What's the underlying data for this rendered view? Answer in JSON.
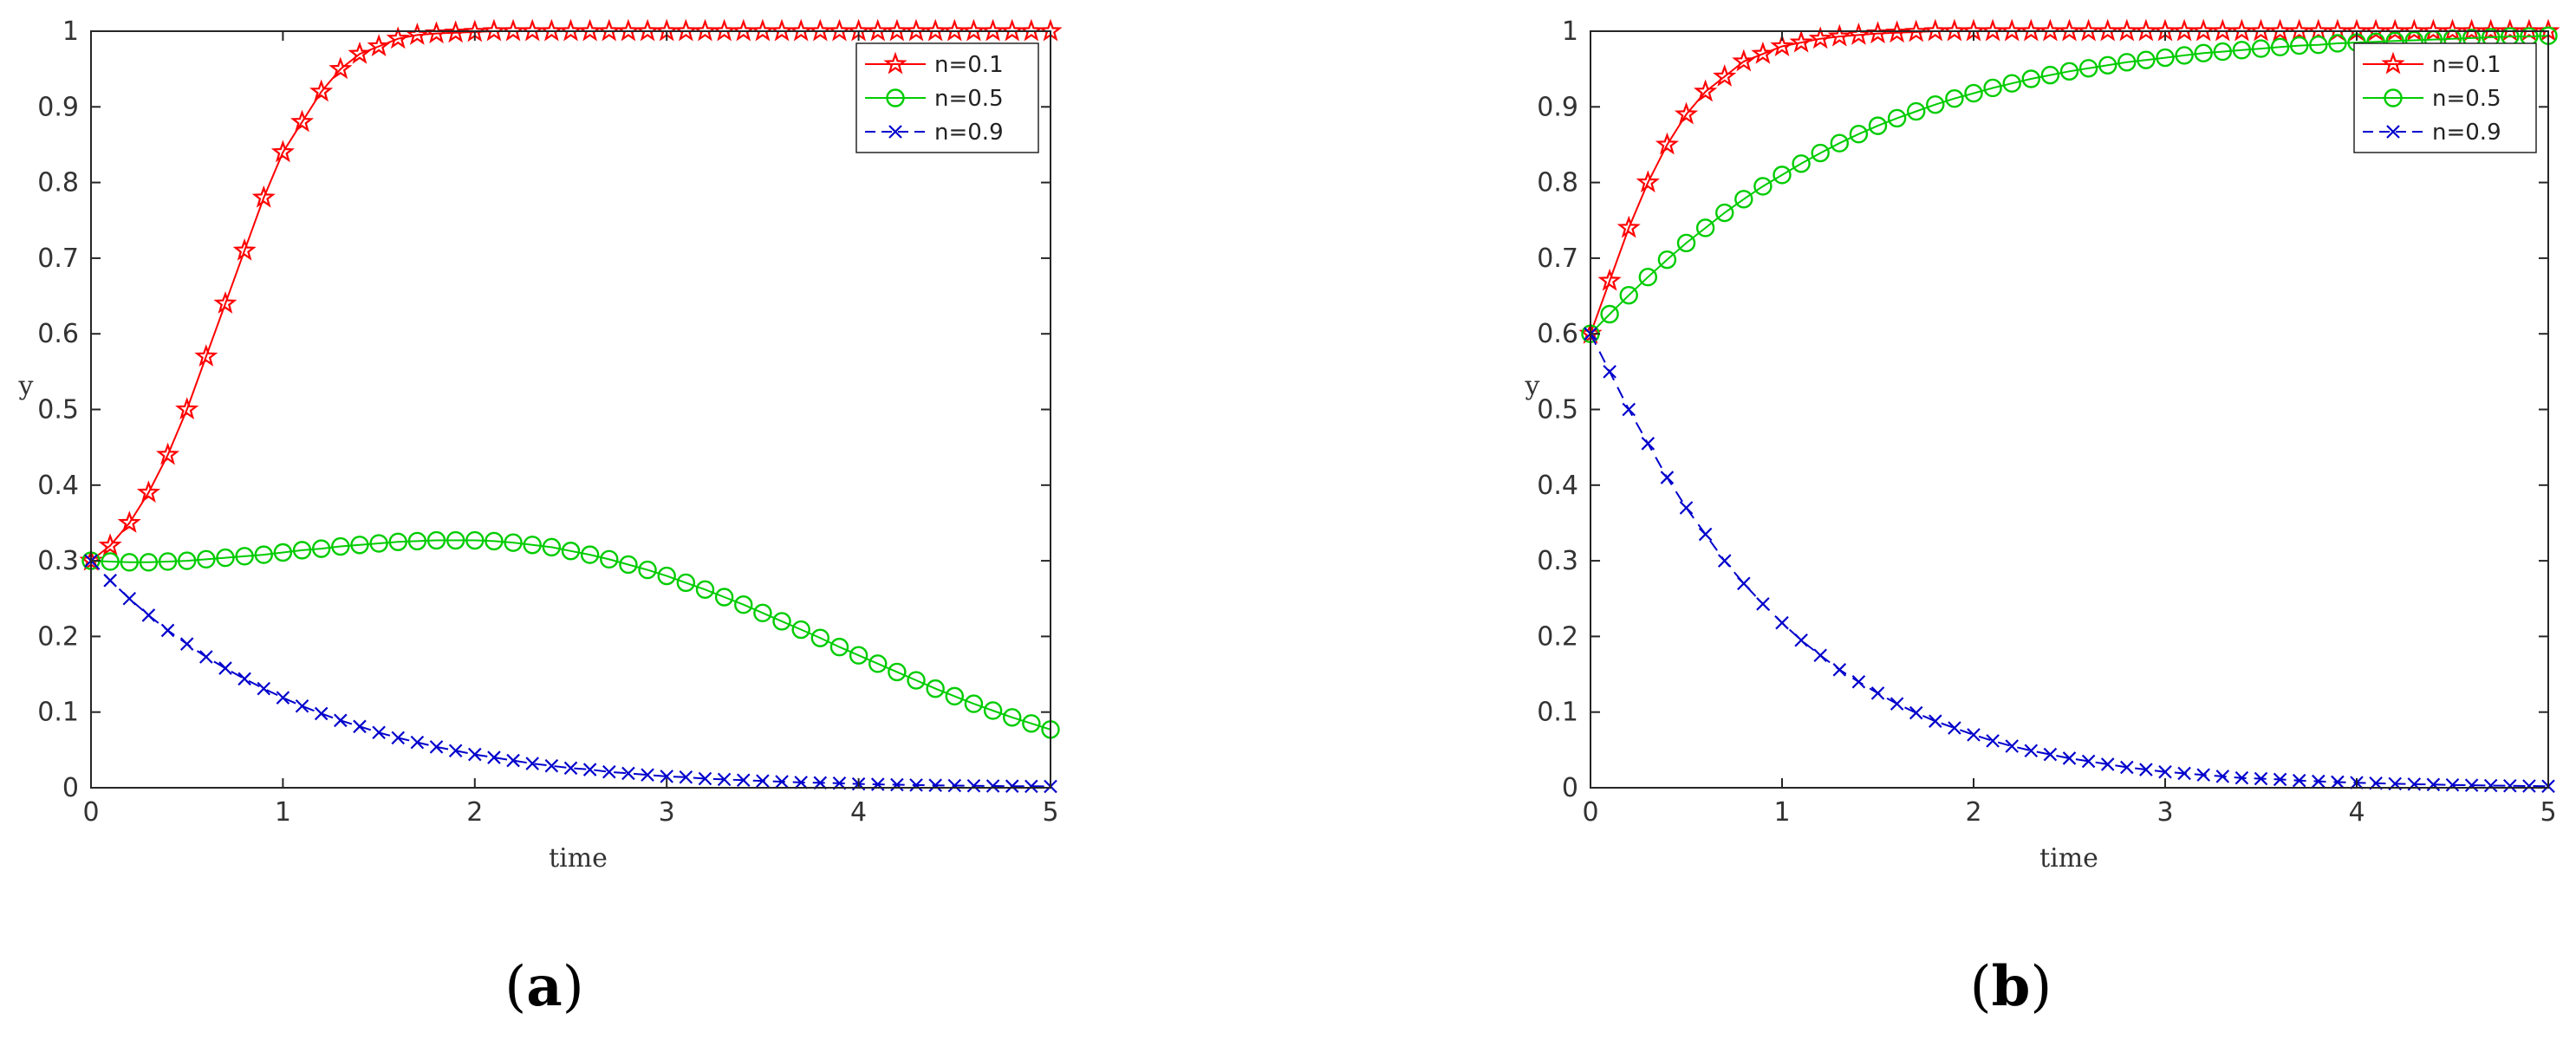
{
  "figure": {
    "panel_labels": [
      {
        "open": "(",
        "letter": "a",
        "close": ")"
      },
      {
        "open": "(",
        "letter": "b",
        "close": ")"
      }
    ]
  },
  "chart_data": [
    {
      "type": "line",
      "title": "",
      "xlabel": "time",
      "ylabel": "y",
      "xlim": [
        0,
        5
      ],
      "ylim": [
        0,
        1
      ],
      "xticks": [
        "0",
        "1",
        "2",
        "3",
        "4",
        "5"
      ],
      "yticks": [
        "0",
        "0.1",
        "0.2",
        "0.3",
        "0.4",
        "0.5",
        "0.6",
        "0.7",
        "0.8",
        "0.9",
        "1"
      ],
      "grid": false,
      "legend_position": "top-right",
      "x": [
        0.0,
        0.1,
        0.2,
        0.3,
        0.4,
        0.5,
        0.6,
        0.7,
        0.8,
        0.9,
        1.0,
        1.1,
        1.2,
        1.3,
        1.4,
        1.5,
        1.6,
        1.7,
        1.8,
        1.9,
        2.0,
        2.1,
        2.2,
        2.3,
        2.4,
        2.5,
        2.6,
        2.7,
        2.8,
        2.9,
        3.0,
        3.1,
        3.2,
        3.3,
        3.4,
        3.5,
        3.6,
        3.7,
        3.8,
        3.9,
        4.0,
        4.1,
        4.2,
        4.3,
        4.4,
        4.5,
        4.6,
        4.7,
        4.8,
        4.9,
        5.0
      ],
      "series": [
        {
          "name": "n=0.1",
          "color": "#ff0000",
          "marker": "star",
          "dash": "solid",
          "values": [
            0.3,
            0.32,
            0.35,
            0.39,
            0.44,
            0.5,
            0.57,
            0.64,
            0.71,
            0.78,
            0.84,
            0.88,
            0.92,
            0.95,
            0.97,
            0.98,
            0.99,
            0.995,
            0.997,
            0.998,
            0.999,
            1,
            1,
            1,
            1,
            1,
            1,
            1,
            1,
            1,
            1,
            1,
            1,
            1,
            1,
            1,
            1,
            1,
            1,
            1,
            1,
            1,
            1,
            1,
            1,
            1,
            1,
            1,
            1,
            1,
            1
          ]
        },
        {
          "name": "n=0.5",
          "color": "#00cc00",
          "marker": "circle",
          "dash": "solid",
          "values": [
            0.3,
            0.299,
            0.298,
            0.298,
            0.299,
            0.3,
            0.302,
            0.304,
            0.306,
            0.308,
            0.311,
            0.314,
            0.316,
            0.319,
            0.321,
            0.323,
            0.325,
            0.326,
            0.327,
            0.327,
            0.327,
            0.326,
            0.324,
            0.321,
            0.318,
            0.313,
            0.308,
            0.302,
            0.295,
            0.288,
            0.28,
            0.271,
            0.262,
            0.252,
            0.242,
            0.231,
            0.22,
            0.209,
            0.198,
            0.186,
            0.175,
            0.164,
            0.153,
            0.142,
            0.131,
            0.121,
            0.111,
            0.102,
            0.093,
            0.085,
            0.077
          ]
        },
        {
          "name": "n=0.9",
          "color": "#0000cc",
          "marker": "x",
          "dash": "dashed",
          "values": [
            0.3,
            0.274,
            0.25,
            0.228,
            0.208,
            0.19,
            0.173,
            0.158,
            0.144,
            0.131,
            0.119,
            0.108,
            0.098,
            0.089,
            0.081,
            0.073,
            0.066,
            0.06,
            0.054,
            0.049,
            0.044,
            0.04,
            0.036,
            0.032,
            0.029,
            0.026,
            0.024,
            0.021,
            0.019,
            0.017,
            0.015,
            0.014,
            0.012,
            0.011,
            0.01,
            0.009,
            0.008,
            0.007,
            0.0065,
            0.006,
            0.005,
            0.0045,
            0.004,
            0.0036,
            0.0032,
            0.0029,
            0.0026,
            0.0023,
            0.0021,
            0.0019,
            0.0017
          ]
        }
      ]
    },
    {
      "type": "line",
      "title": "",
      "xlabel": "time",
      "ylabel": "y",
      "xlim": [
        0,
        5
      ],
      "ylim": [
        0,
        1
      ],
      "xticks": [
        "0",
        "1",
        "2",
        "3",
        "4",
        "5"
      ],
      "yticks": [
        "0",
        "0.1",
        "0.2",
        "0.3",
        "0.4",
        "0.5",
        "0.6",
        "0.7",
        "0.8",
        "0.9",
        "1"
      ],
      "grid": false,
      "legend_position": "top-right",
      "x": [
        0.0,
        0.1,
        0.2,
        0.3,
        0.4,
        0.5,
        0.6,
        0.7,
        0.8,
        0.9,
        1.0,
        1.1,
        1.2,
        1.3,
        1.4,
        1.5,
        1.6,
        1.7,
        1.8,
        1.9,
        2.0,
        2.1,
        2.2,
        2.3,
        2.4,
        2.5,
        2.6,
        2.7,
        2.8,
        2.9,
        3.0,
        3.1,
        3.2,
        3.3,
        3.4,
        3.5,
        3.6,
        3.7,
        3.8,
        3.9,
        4.0,
        4.1,
        4.2,
        4.3,
        4.4,
        4.5,
        4.6,
        4.7,
        4.8,
        4.9,
        5.0
      ],
      "series": [
        {
          "name": "n=0.1",
          "color": "#ff0000",
          "marker": "star",
          "dash": "solid",
          "values": [
            0.6,
            0.67,
            0.74,
            0.8,
            0.85,
            0.89,
            0.92,
            0.94,
            0.96,
            0.97,
            0.98,
            0.985,
            0.99,
            0.993,
            0.995,
            0.997,
            0.998,
            0.999,
            1,
            1,
            1,
            1,
            1,
            1,
            1,
            1,
            1,
            1,
            1,
            1,
            1,
            1,
            1,
            1,
            1,
            1,
            1,
            1,
            1,
            1,
            1,
            1,
            1,
            1,
            1,
            1,
            1,
            1,
            1,
            1,
            1
          ]
        },
        {
          "name": "n=0.5",
          "color": "#00cc00",
          "marker": "circle",
          "dash": "solid",
          "values": [
            0.6,
            0.626,
            0.651,
            0.675,
            0.698,
            0.72,
            0.74,
            0.76,
            0.778,
            0.795,
            0.81,
            0.825,
            0.839,
            0.852,
            0.864,
            0.875,
            0.885,
            0.894,
            0.903,
            0.911,
            0.918,
            0.925,
            0.931,
            0.937,
            0.942,
            0.947,
            0.951,
            0.955,
            0.959,
            0.962,
            0.965,
            0.968,
            0.971,
            0.973,
            0.975,
            0.977,
            0.979,
            0.981,
            0.982,
            0.984,
            0.985,
            0.986,
            0.987,
            0.988,
            0.989,
            0.99,
            0.991,
            0.992,
            0.993,
            0.993,
            0.994
          ]
        },
        {
          "name": "n=0.9",
          "color": "#0000cc",
          "marker": "x",
          "dash": "dashed",
          "values": [
            0.6,
            0.55,
            0.5,
            0.455,
            0.41,
            0.37,
            0.335,
            0.3,
            0.27,
            0.243,
            0.218,
            0.195,
            0.175,
            0.156,
            0.14,
            0.125,
            0.111,
            0.099,
            0.088,
            0.079,
            0.07,
            0.062,
            0.055,
            0.049,
            0.044,
            0.039,
            0.035,
            0.031,
            0.027,
            0.024,
            0.021,
            0.019,
            0.017,
            0.015,
            0.013,
            0.012,
            0.011,
            0.0095,
            0.0085,
            0.0075,
            0.0067,
            0.006,
            0.0053,
            0.0047,
            0.0042,
            0.0037,
            0.0033,
            0.0029,
            0.0026,
            0.0023,
            0.002
          ]
        }
      ]
    }
  ]
}
